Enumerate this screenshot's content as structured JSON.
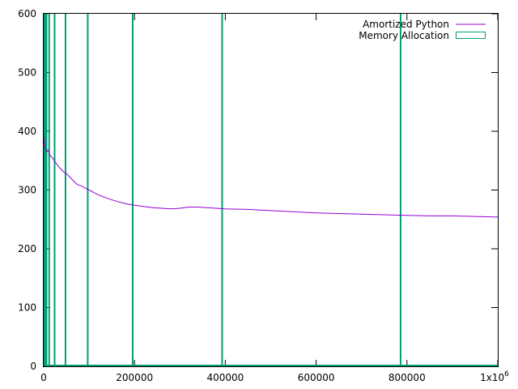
{
  "chart_data": {
    "type": "line",
    "title": "",
    "xlabel": "",
    "ylabel": "",
    "xlim": [
      0,
      1000000
    ],
    "ylim": [
      0,
      600
    ],
    "grid": false,
    "legend_position": "top-right",
    "x_ticks": [
      0,
      200000,
      400000,
      600000,
      800000,
      1000000
    ],
    "x_tick_labels": [
      "0",
      "200000",
      "400000",
      "600000",
      "800000",
      "1x10"
    ],
    "x_tick_last_exponent": "6",
    "y_ticks": [
      0,
      100,
      200,
      300,
      400,
      500,
      600
    ],
    "y_tick_labels": [
      "0",
      "100",
      "200",
      "300",
      "400",
      "500",
      "600"
    ],
    "series": [
      {
        "name": "Amortized Python",
        "style": "line",
        "color": "#9400d3",
        "x": [
          0,
          2000,
          4000,
          6000,
          8000,
          10000,
          12000,
          15000,
          20000,
          25000,
          30000,
          35000,
          40000,
          45000,
          50000,
          55000,
          60000,
          65000,
          70000,
          75000,
          80000,
          90000,
          100000,
          120000,
          140000,
          160000,
          180000,
          200000,
          220000,
          240000,
          260000,
          280000,
          300000,
          320000,
          340000,
          360000,
          380000,
          400000,
          450000,
          500000,
          550000,
          600000,
          650000,
          700000,
          750000,
          800000,
          850000,
          900000,
          950000,
          1000000
        ],
        "y": [
          390,
          380,
          370,
          365,
          366,
          368,
          362,
          358,
          354,
          348,
          343,
          338,
          334,
          330,
          328,
          324,
          320,
          316,
          312,
          309,
          308,
          304,
          300,
          292,
          286,
          281,
          277,
          274,
          272,
          270,
          269,
          268,
          269,
          271,
          271,
          270,
          269,
          268,
          267,
          265,
          263,
          261,
          260,
          259,
          258,
          257,
          256,
          256,
          255,
          254
        ]
      },
      {
        "name": "Memory Allocation",
        "style": "impulses",
        "color": "#009e73",
        "x": [
          500,
          1000,
          2000,
          3000,
          6000,
          12000,
          24000,
          48000,
          97000,
          196000,
          393000,
          786000
        ],
        "y": [
          600,
          600,
          600,
          600,
          600,
          600,
          600,
          600,
          600,
          600,
          600,
          600
        ]
      }
    ]
  }
}
